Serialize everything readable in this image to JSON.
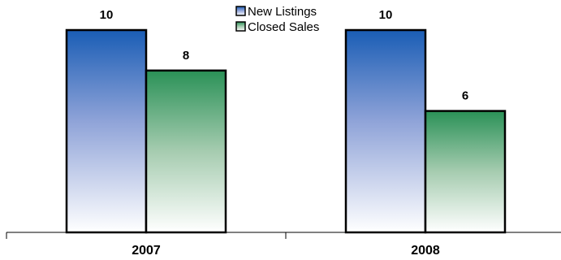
{
  "chart_data": {
    "type": "bar",
    "categories": [
      "2007",
      "2008"
    ],
    "series": [
      {
        "name": "New Listings",
        "values": [
          10,
          10
        ],
        "color": "#1f5fb8",
        "legend_key": "legend.items.0.label"
      },
      {
        "name": "Closed Sales",
        "values": [
          8,
          6
        ],
        "color": "#2e8b57",
        "legend_key": "legend.items.1.label"
      }
    ],
    "ylim": [
      0,
      10
    ],
    "grid": false,
    "legend_position": "top-center"
  },
  "legend": {
    "items": [
      {
        "label": "New Listings"
      },
      {
        "label": "Closed Sales"
      }
    ]
  }
}
